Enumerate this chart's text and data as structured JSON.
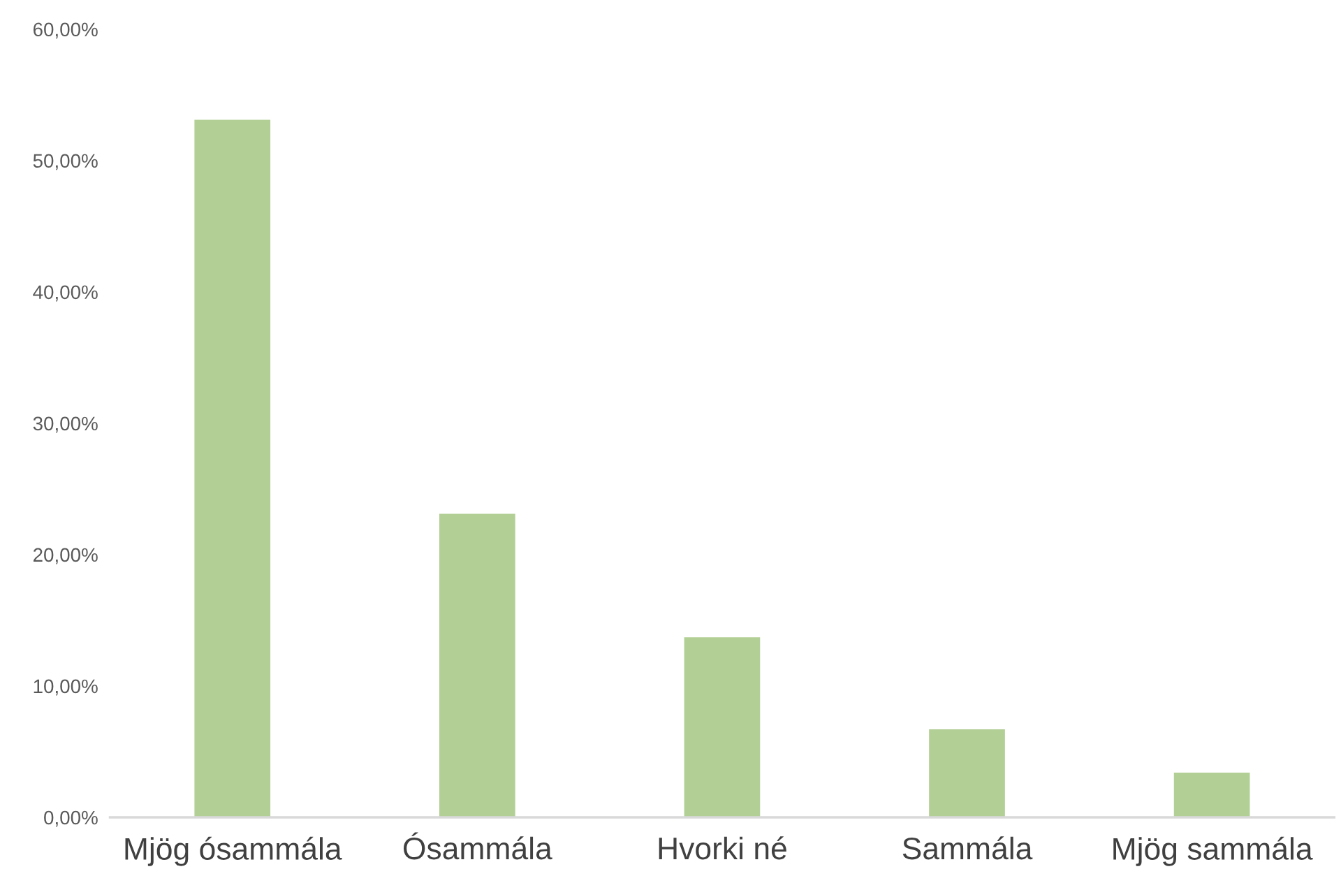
{
  "chart_data": {
    "type": "bar",
    "categories": [
      "Mjög ósammála",
      "Ósammála",
      "Hvorki né",
      "Sammála",
      "Mjög sammála"
    ],
    "values": [
      53.1,
      23.1,
      13.7,
      6.7,
      3.4
    ],
    "color": "#b2cf95",
    "ylim": [
      0,
      60
    ],
    "yticks": [
      {
        "value": 0,
        "label": "0,00%"
      },
      {
        "value": 10,
        "label": "10,00%"
      },
      {
        "value": 20,
        "label": "20,00%"
      },
      {
        "value": 30,
        "label": "30,00%"
      },
      {
        "value": 40,
        "label": "40,00%"
      },
      {
        "value": 50,
        "label": "50,00%"
      },
      {
        "value": 60,
        "label": "60,00%"
      }
    ],
    "grid": false
  }
}
